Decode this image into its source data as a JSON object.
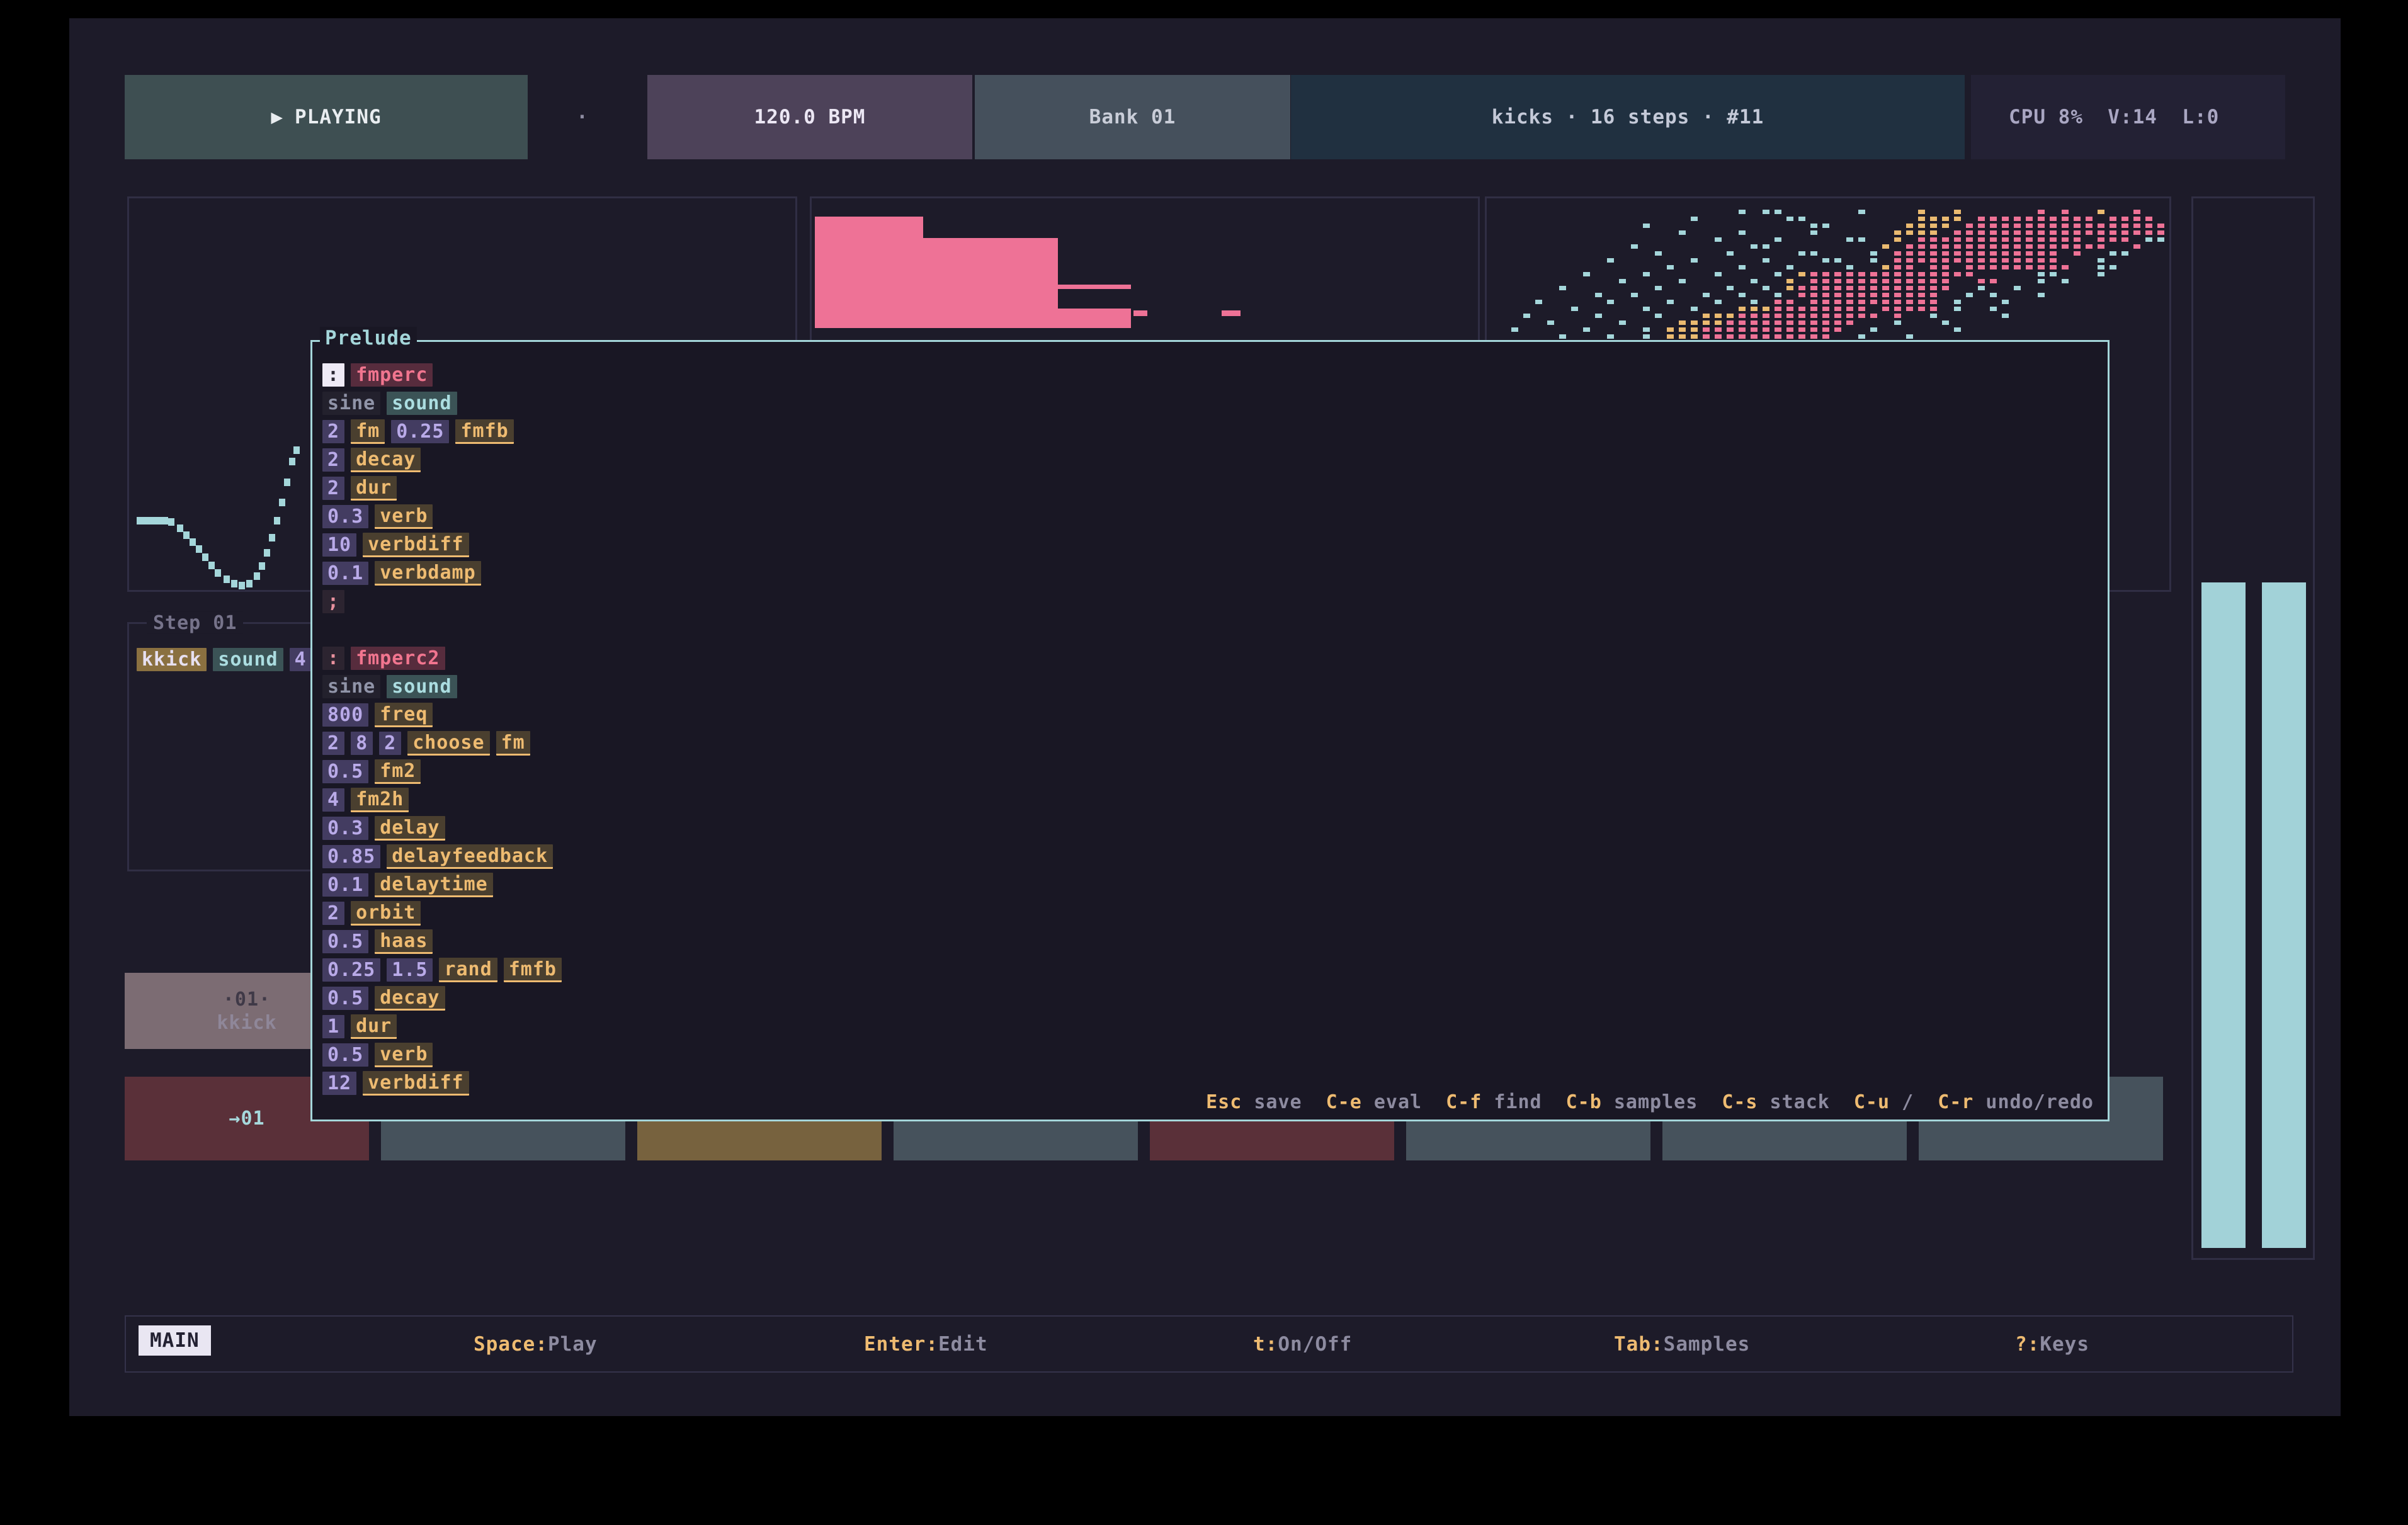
{
  "colors": {
    "bg": "#1d1b29",
    "panel_border": "#302e44",
    "cyan": "#a4d6da",
    "pink": "#ee7296",
    "gold": "#eaba70",
    "grey": "#8d8ba0",
    "lavender": "#a9a6c2",
    "white": "#e9edf0",
    "teal_box": "#3e4f52",
    "purple_box": "#4d4259",
    "slate_box": "#45505c",
    "navy_box": "#203040",
    "cpu_box": "#232134",
    "num": "#b9aae8",
    "num_bg": "#433c61",
    "kw": "#eebb71",
    "kw_bg": "#4a3f2f",
    "fn": "#f1758f",
    "fn_bg": "#572c3d",
    "sound": "#abdde0",
    "sound_bg": "#3b5356",
    "plain": "#9094a8",
    "plain_bg": "#23212d",
    "punct": "#e8919e",
    "punct_bg": "#2c2430",
    "cursor_fg": "#2a2733",
    "cursor_bg": "#eeeaf6",
    "cell_mauve": "#7c6c73",
    "cell_maroon": "#5a3039",
    "cell_slate": "#46525c",
    "cell_gold": "#77623e",
    "meter": "#a2d2d8"
  },
  "top_bar": {
    "play_icon": "▶",
    "playing": "PLAYING",
    "separator": "·",
    "bpm": "120.0 BPM",
    "bank": "Bank 01",
    "track": "kicks · 16 steps · #11",
    "cpu": "CPU 8%  V:14  L:0"
  },
  "editor": {
    "title": "Prelude",
    "blocks": [
      [
        [
          [
            "cursor",
            ":"
          ],
          [
            "fn",
            "fmperc"
          ]
        ],
        [
          [
            "plain",
            "sine"
          ],
          [
            "sound",
            "sound"
          ]
        ],
        [
          [
            "num",
            "2"
          ],
          [
            "kw",
            "fm"
          ],
          [
            "num",
            "0.25"
          ],
          [
            "kw",
            "fmfb"
          ]
        ],
        [
          [
            "num",
            "2"
          ],
          [
            "kw",
            "decay"
          ]
        ],
        [
          [
            "num",
            "2"
          ],
          [
            "kw",
            "dur"
          ]
        ],
        [
          [
            "num",
            "0.3"
          ],
          [
            "kw",
            "verb"
          ]
        ],
        [
          [
            "num",
            "10"
          ],
          [
            "kw",
            "verbdiff"
          ]
        ],
        [
          [
            "num",
            "0.1"
          ],
          [
            "kw",
            "verbdamp"
          ]
        ],
        [
          [
            "punct",
            ";"
          ]
        ]
      ],
      [
        [
          [
            "punct",
            ":"
          ],
          [
            "fn",
            "fmperc2"
          ]
        ],
        [
          [
            "plain",
            "sine"
          ],
          [
            "sound",
            "sound"
          ]
        ],
        [
          [
            "num",
            "800"
          ],
          [
            "kw",
            "freq"
          ]
        ],
        [
          [
            "num",
            "2"
          ],
          [
            "num",
            "8"
          ],
          [
            "num",
            "2"
          ],
          [
            "kw",
            "choose"
          ],
          [
            "kw",
            "fm"
          ]
        ],
        [
          [
            "num",
            "0.5"
          ],
          [
            "kw",
            "fm2"
          ]
        ],
        [
          [
            "num",
            "4"
          ],
          [
            "kw",
            "fm2h"
          ]
        ],
        [
          [
            "num",
            "0.3"
          ],
          [
            "kw",
            "delay"
          ]
        ],
        [
          [
            "num",
            "0.85"
          ],
          [
            "kw",
            "delayfeedback"
          ]
        ],
        [
          [
            "num",
            "0.1"
          ],
          [
            "kw",
            "delaytime"
          ]
        ],
        [
          [
            "num",
            "2"
          ],
          [
            "kw",
            "orbit"
          ]
        ],
        [
          [
            "num",
            "0.5"
          ],
          [
            "kw",
            "haas"
          ]
        ],
        [
          [
            "num",
            "0.25"
          ],
          [
            "num",
            "1.5"
          ],
          [
            "kw",
            "rand"
          ],
          [
            "kw",
            "fmfb"
          ]
        ],
        [
          [
            "num",
            "0.5"
          ],
          [
            "kw",
            "decay"
          ]
        ],
        [
          [
            "num",
            "1"
          ],
          [
            "kw",
            "dur"
          ]
        ],
        [
          [
            "num",
            "0.5"
          ],
          [
            "kw",
            "verb"
          ]
        ],
        [
          [
            "num",
            "12"
          ],
          [
            "kw",
            "verbdiff"
          ]
        ]
      ]
    ],
    "hints": [
      [
        "Esc",
        "save"
      ],
      [
        "C-e",
        "eval"
      ],
      [
        "C-f",
        "find"
      ],
      [
        "C-b",
        "samples"
      ],
      [
        "C-s",
        "stack"
      ],
      [
        "C-u",
        "/"
      ],
      [
        "C-r",
        "undo/redo"
      ]
    ]
  },
  "step_panel": {
    "title": "Step 01",
    "tokens": [
      [
        "skw",
        "kkick"
      ],
      [
        "sound",
        "sound"
      ],
      [
        "num",
        "4"
      ]
    ]
  },
  "grid": {
    "row1": {
      "num": "·01·",
      "name": "kkick"
    },
    "row2_arrow": "→01",
    "row2_colors": [
      "maroon",
      "slate",
      "gold",
      "slate",
      "maroon",
      "slate",
      "slate",
      "slate"
    ]
  },
  "status_bar": {
    "mode": "MAIN",
    "hints": [
      [
        "Space",
        "Play"
      ],
      [
        "Enter",
        "Edit"
      ],
      [
        "t",
        "On/Off"
      ],
      [
        "Tab",
        "Samples"
      ],
      [
        "?",
        "Keys"
      ]
    ]
  },
  "panels": {
    "histogram": {
      "bars": [
        [
          5,
          29,
          172,
          177
        ],
        [
          175,
          63,
          216,
          143
        ],
        [
          362,
          137,
          145,
          7
        ],
        [
          362,
          175,
          145,
          31
        ],
        [
          511,
          178,
          22,
          9
        ],
        [
          651,
          178,
          30,
          9
        ]
      ]
    },
    "waveform": {
      "dots": [
        [
          12,
          506
        ],
        [
          22,
          506
        ],
        [
          32,
          506
        ],
        [
          42,
          506
        ],
        [
          52,
          506
        ],
        [
          62,
          508
        ],
        [
          76,
          518
        ],
        [
          86,
          529
        ],
        [
          96,
          540
        ],
        [
          106,
          551
        ],
        [
          116,
          564
        ],
        [
          126,
          577
        ],
        [
          136,
          589
        ],
        [
          150,
          599
        ],
        [
          162,
          606
        ],
        [
          174,
          609
        ],
        [
          186,
          606
        ],
        [
          198,
          594
        ],
        [
          206,
          578
        ],
        [
          214,
          557
        ],
        [
          222,
          533
        ],
        [
          230,
          506
        ],
        [
          238,
          477
        ],
        [
          246,
          445
        ],
        [
          254,
          412
        ],
        [
          261,
          394
        ]
      ]
    },
    "scatter": {
      "rows": [
        "....................c.cc......c....g..g......p.p..g..p..",
        "................c.......cc.........gggg.pppppppppp.pppp.",
        "............c.............cc......gggg.ppppppppppppppppp",
        "...............c....c.....c......gggg.pppppppppppppppppp",
        "..................c....c.....cc..g.pppppppppppppp.ppp.cc",
        "...........c.........cc.........g.ppppppppppppppppp..p..",
        ".............c.....c.....cc....c.pppppppppppppp.p..cc...",
        ".........c......c.....c....cc..c.pppppppppppppp...c.....",
        "..............c.....c...c....c..gpp.pp.ppppppppp..cc....",
        ".......c....c.....c....c.gpppppppppppppp.....cc...c.....",
        "..........c....c.....c..g.pppppppppppp..pp...c.c........",
        ".....c.......c.....c..c.gppppppppppppp..c..c............",
        "........c..c.....c..c..c.pppppppppppp..c.c...c..........",
        "...c.....c....c...c..c.pp.ppppppppppp.c...c.............",
        "......c.....c...c...gggpppppppp.ppppp.c..c..............",
        "..c.....c....c...gggpppppppppppp.p..c.....c.............",
        "....c.....c....ggggppppppppppp...c...c..................",
        ".c.....c....c.gggpppppppppppp..c......c.................",
        ".....c...c..c.gggppppppppppp..c...c.....................",
        "...c..c.c..c.ggppppppppppp..c..........................."
      ]
    }
  }
}
